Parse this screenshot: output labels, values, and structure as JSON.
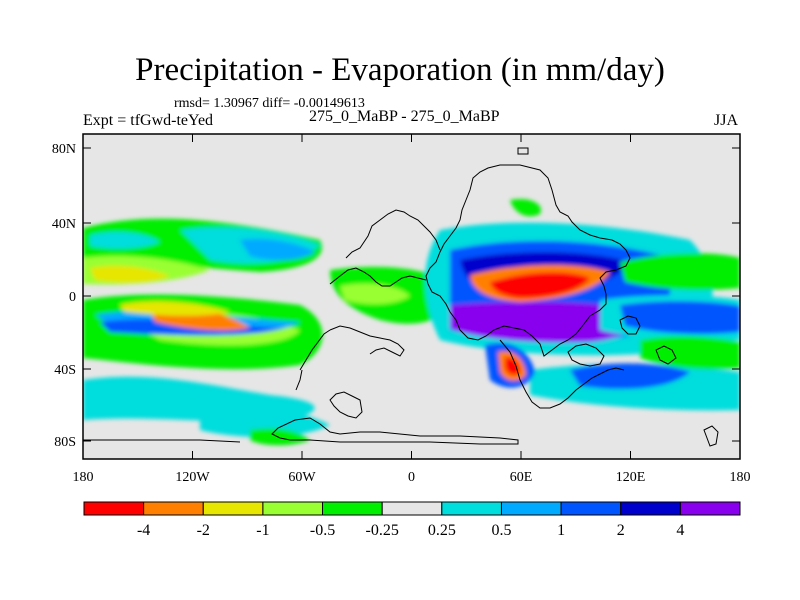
{
  "title": "Precipitation - Evaporation (in mm/day)",
  "stats": "rmsd= 1.30967 diff= -0.00149613",
  "left_label": "Expt = tfGwd-teYed",
  "center_label": "275_0_MaBP - 275_0_MaBP",
  "right_label": "JJA",
  "y_ticks": [
    "80N",
    "40N",
    "0",
    "40S",
    "80S"
  ],
  "x_ticks": [
    "180",
    "120W",
    "60W",
    "0",
    "60E",
    "120E",
    "180"
  ],
  "colorbar": {
    "colors": [
      "#ff0000",
      "#ff8000",
      "#e6e600",
      "#99ff33",
      "#00ee00",
      "#e6e6e6",
      "#00dddd",
      "#00aaff",
      "#0055ff",
      "#0000cc",
      "#8800ee"
    ],
    "labels": [
      "-4",
      "-2",
      "-1",
      "-0.5",
      "-0.25",
      "0.25",
      "0.5",
      "1",
      "2",
      "4"
    ]
  },
  "map": {
    "background": "#e6e6e6"
  }
}
